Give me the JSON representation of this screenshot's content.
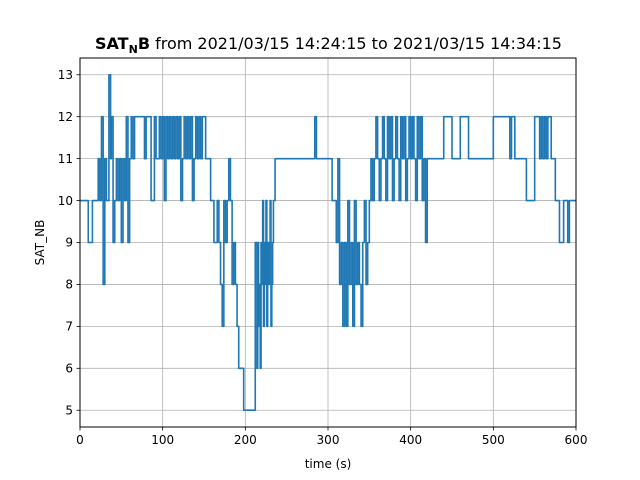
{
  "chart_data": {
    "type": "line",
    "title": {
      "bold": "SAT",
      "subscript": "N",
      "bold_tail": "B",
      "rest": " from 2021/03/15 14:24:15 to 2021/03/15 14:34:15"
    },
    "xlabel": "time (s)",
    "ylabel": "SAT_NB",
    "xlim": [
      0,
      600
    ],
    "ylim": [
      4.6,
      13.4
    ],
    "xticks": [
      0,
      100,
      200,
      300,
      400,
      500,
      600
    ],
    "yticks": [
      5,
      6,
      7,
      8,
      9,
      10,
      11,
      12,
      13
    ],
    "grid": true,
    "step": "post",
    "color": "#1f77b4",
    "series": [
      {
        "x": [
          0,
          10,
          15,
          22,
          24,
          26,
          28,
          30,
          32,
          35,
          37,
          38,
          40,
          42,
          44,
          46,
          48,
          50,
          52,
          54,
          56,
          58,
          60,
          62,
          64,
          66,
          72,
          78,
          80,
          86,
          90,
          92,
          94,
          96,
          98,
          100,
          102,
          104,
          106,
          108,
          110,
          112,
          114,
          116,
          118,
          120,
          122,
          124,
          126,
          128,
          130,
          132,
          134,
          136,
          138,
          140,
          142,
          144,
          146,
          148,
          152,
          158,
          162,
          166,
          168,
          170,
          172,
          174,
          176,
          178,
          180,
          182,
          184,
          186,
          188,
          190,
          192,
          195,
          198,
          200,
          205,
          212,
          214,
          215,
          216,
          217,
          218,
          219,
          220,
          221,
          222,
          223,
          224,
          225,
          226,
          227,
          228,
          229,
          230,
          231,
          232,
          233,
          234,
          236,
          240,
          246,
          250,
          255,
          260,
          270,
          280,
          284,
          286,
          290,
          300,
          305,
          310,
          312,
          314,
          316,
          318,
          320,
          322,
          324,
          326,
          328,
          330,
          332,
          334,
          336,
          338,
          340,
          342,
          344,
          346,
          348,
          350,
          352,
          354,
          356,
          358,
          360,
          362,
          364,
          366,
          368,
          370,
          372,
          374,
          376,
          378,
          380,
          382,
          384,
          386,
          388,
          390,
          392,
          394,
          396,
          398,
          400,
          402,
          404,
          406,
          408,
          410,
          412,
          414,
          416,
          418,
          420,
          430,
          440,
          450,
          460,
          470,
          480,
          490,
          500,
          510,
          520,
          522,
          526,
          530,
          540,
          550,
          556,
          558,
          560,
          562,
          564,
          566,
          570,
          575,
          580,
          585,
          590,
          592,
          594,
          596,
          600
        ],
        "values": [
          10,
          9,
          10,
          11,
          10,
          12,
          8,
          11,
          10,
          13,
          11,
          12,
          9,
          10,
          11,
          10,
          11,
          9,
          11,
          10,
          12,
          9,
          11,
          12,
          11,
          12,
          12,
          11,
          12,
          10,
          12,
          11,
          11,
          12,
          11,
          12,
          10,
          12,
          11,
          12,
          11,
          12,
          11,
          12,
          11,
          12,
          10,
          11,
          12,
          11,
          12,
          11,
          12,
          10,
          11,
          12,
          11,
          12,
          11,
          12,
          11,
          10,
          9,
          10,
          9,
          8,
          7,
          10,
          9,
          10,
          11,
          10,
          8,
          9,
          8,
          7,
          6,
          6,
          5,
          5,
          5,
          9,
          6,
          9,
          7,
          8,
          6,
          9,
          8,
          10,
          7,
          9,
          8,
          10,
          7,
          9,
          8,
          9,
          10,
          7,
          8,
          9,
          10,
          11,
          11,
          11,
          11,
          11,
          11,
          11,
          11,
          12,
          11,
          11,
          11,
          10,
          9,
          11,
          8,
          9,
          7,
          9,
          7,
          10,
          8,
          9,
          7,
          10,
          8,
          9,
          8,
          7,
          9,
          10,
          8,
          9,
          10,
          11,
          10,
          11,
          12,
          11,
          10,
          11,
          12,
          11,
          10,
          12,
          11,
          12,
          10,
          11,
          12,
          11,
          10,
          12,
          11,
          12,
          10,
          11,
          12,
          11,
          12,
          11,
          10,
          12,
          11,
          12,
          10,
          11,
          9,
          11,
          11,
          12,
          11,
          12,
          11,
          11,
          11,
          12,
          12,
          11,
          12,
          11,
          11,
          10,
          12,
          11,
          12,
          11,
          12,
          11,
          12,
          11,
          10,
          9,
          10,
          9,
          10,
          10,
          10,
          10
        ]
      }
    ]
  }
}
